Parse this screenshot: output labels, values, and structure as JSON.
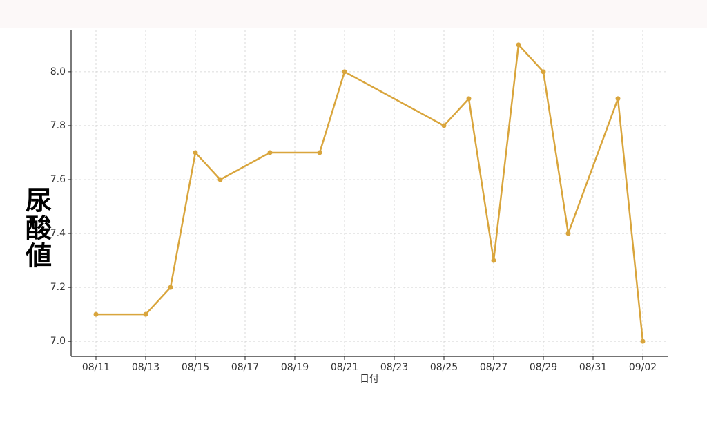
{
  "chart_data": {
    "type": "line",
    "x_label": "日付",
    "y_label": "尿酸値",
    "x": [
      "08/11",
      "08/13",
      "08/14",
      "08/15",
      "08/16",
      "08/18",
      "08/20",
      "08/21",
      "08/25",
      "08/26",
      "08/27",
      "08/28",
      "08/29",
      "08/30",
      "09/01",
      "09/02"
    ],
    "series": [
      {
        "color": "#d9a53c",
        "values": [
          7.1,
          7.1,
          7.2,
          7.7,
          7.6,
          7.7,
          7.7,
          8.0,
          7.8,
          7.9,
          7.3,
          8.1,
          8.0,
          7.4,
          7.9,
          7.0
        ]
      }
    ],
    "xlim": [
      "08/10",
      "09/03"
    ],
    "xticks": [
      "08/11",
      "08/13",
      "08/15",
      "08/17",
      "08/19",
      "08/21",
      "08/23",
      "08/25",
      "08/27",
      "08/29",
      "08/31",
      "09/02"
    ],
    "ylim": [
      6.944,
      8.156
    ],
    "yticks": [
      {
        "value": 7.0,
        "label": "7.0"
      },
      {
        "value": 7.2,
        "label": "7.2"
      },
      {
        "value": 7.4,
        "label": "7.4"
      },
      {
        "value": 7.6,
        "label": "7.6"
      },
      {
        "value": 7.8,
        "label": "7.8"
      },
      {
        "value": 8.0,
        "label": "8.0"
      }
    ],
    "grid": true
  }
}
